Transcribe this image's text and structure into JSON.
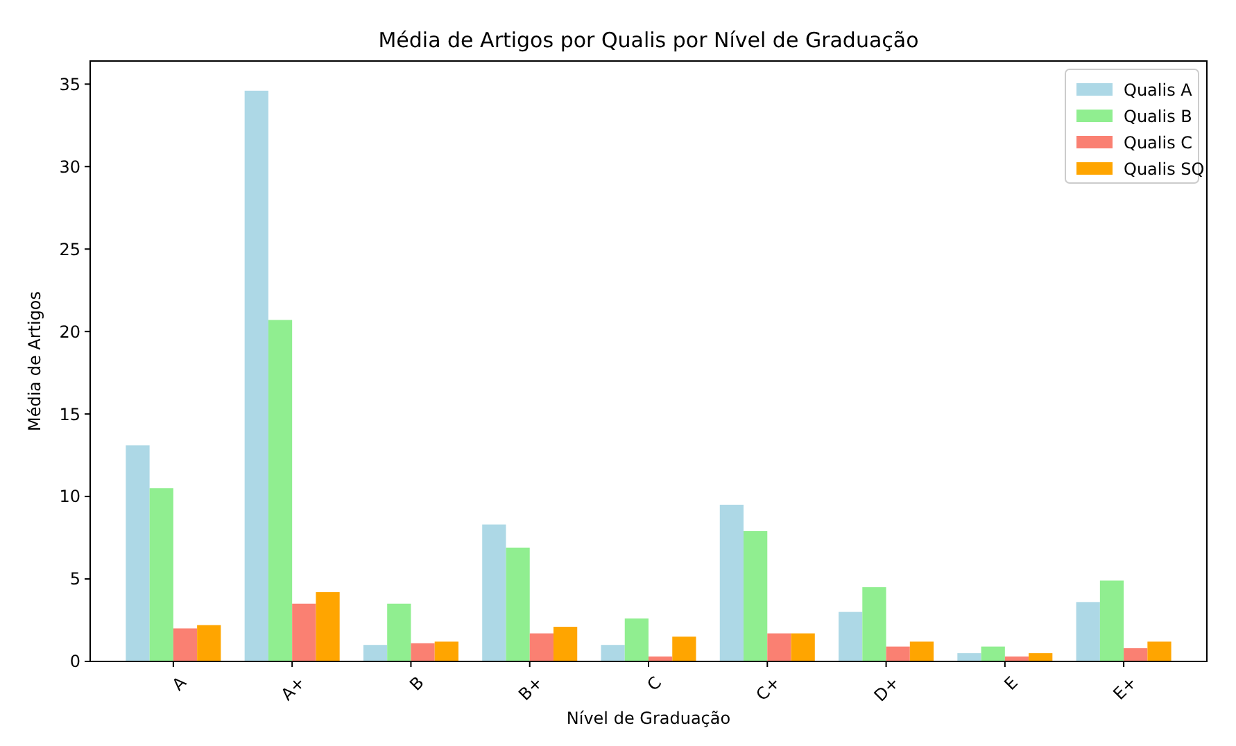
{
  "chart_data": {
    "type": "bar",
    "title": "Média de Artigos por Qualis por Nível de Graduação",
    "xlabel": "Nível de Graduação",
    "ylabel": "Média de Artigos",
    "categories": [
      "A",
      "A+",
      "B",
      "B+",
      "C",
      "C+",
      "D+",
      "E",
      "E+"
    ],
    "series": [
      {
        "name": "Qualis A",
        "color": "#add8e6",
        "values": [
          13.1,
          34.6,
          1.0,
          8.3,
          1.0,
          9.5,
          3.0,
          0.5,
          3.6
        ]
      },
      {
        "name": "Qualis B",
        "color": "#90ee90",
        "values": [
          10.5,
          20.7,
          3.5,
          6.9,
          2.6,
          7.9,
          4.5,
          0.9,
          4.9
        ]
      },
      {
        "name": "Qualis C",
        "color": "#fa8072",
        "values": [
          2.0,
          3.5,
          1.1,
          1.7,
          0.3,
          1.7,
          0.9,
          0.3,
          0.8
        ]
      },
      {
        "name": "Qualis SQ",
        "color": "#ffa500",
        "values": [
          2.2,
          4.2,
          1.2,
          2.1,
          1.5,
          1.7,
          1.2,
          0.5,
          1.2
        ]
      }
    ],
    "ylim": [
      0,
      36.4
    ],
    "yticks": [
      0,
      5,
      10,
      15,
      20,
      25,
      30,
      35
    ],
    "grid": false,
    "legend": "top right"
  }
}
